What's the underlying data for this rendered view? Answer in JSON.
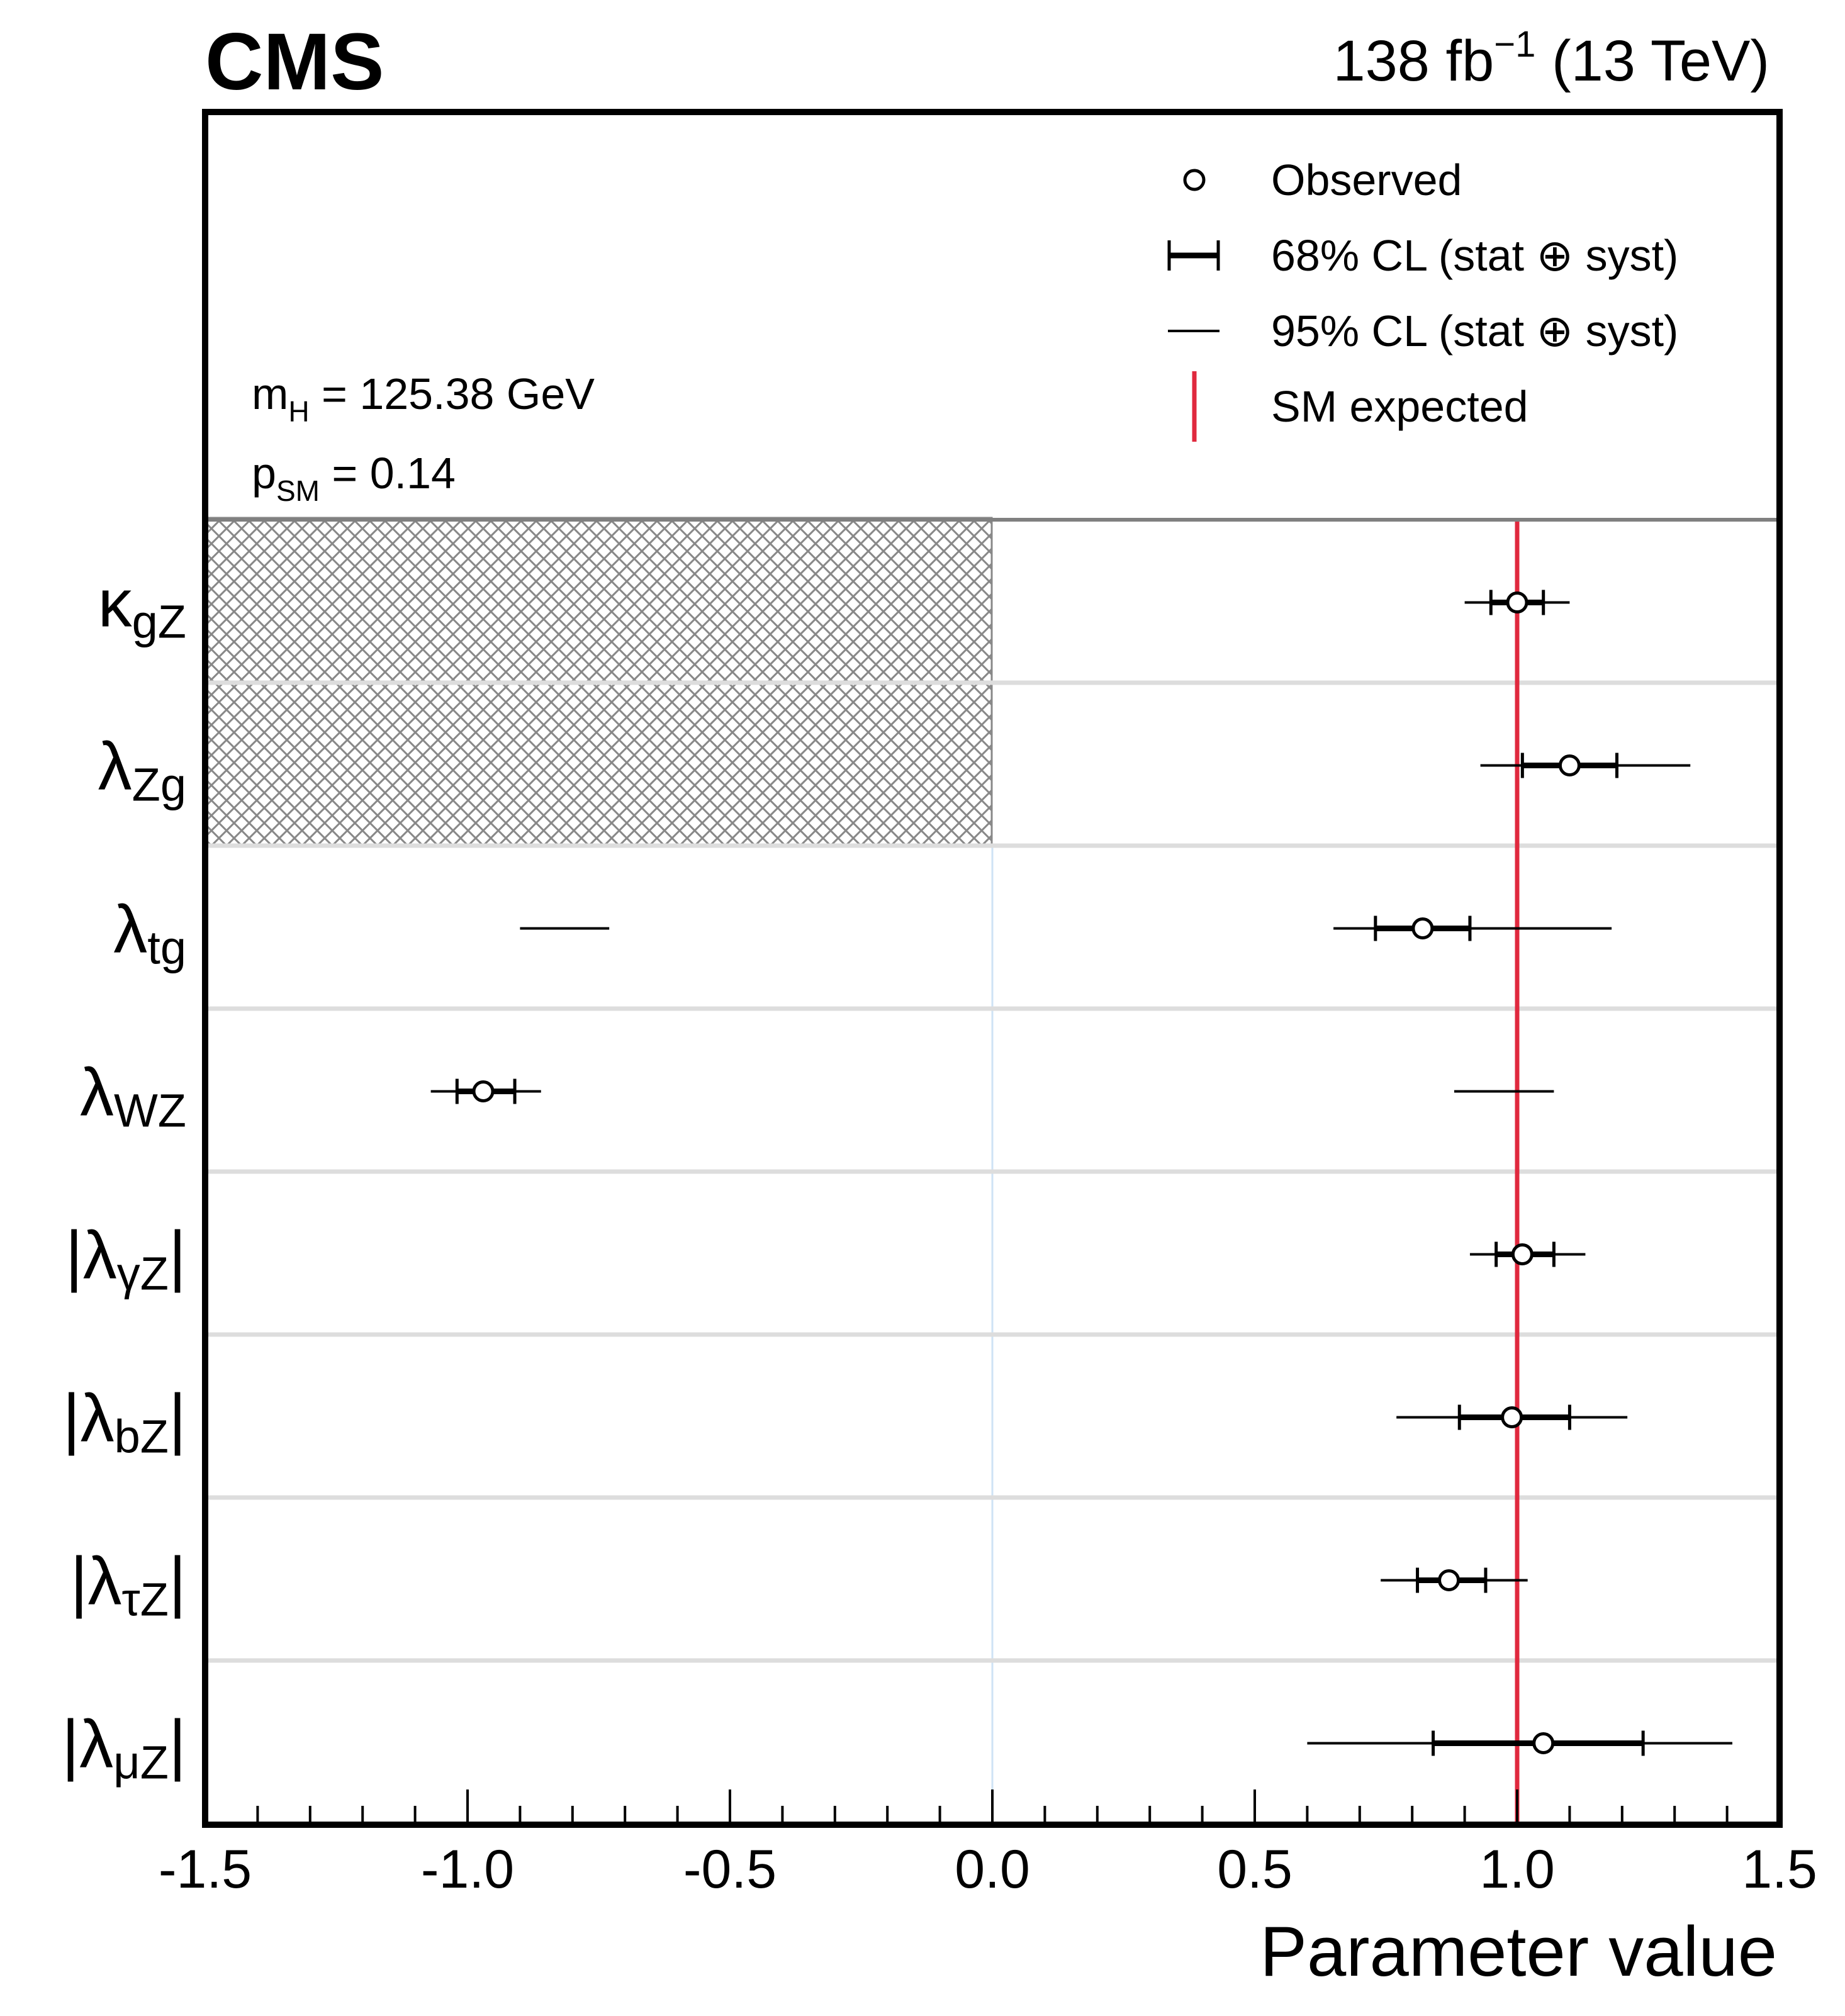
{
  "header": {
    "experiment": "CMS",
    "luminosity_value": "138 fb",
    "luminosity_exponent": "−1",
    "energy": "(13 TeV)"
  },
  "info": {
    "mass_label": "m",
    "mass_sub": "H",
    "mass_value": " = 125.38 GeV",
    "psm_label": "p",
    "psm_sub": "SM",
    "psm_value": " = 0.14"
  },
  "legend": {
    "observed": "Observed",
    "cl68": "68% CL (stat ⊕ syst)",
    "cl95": "95% CL (stat ⊕ syst)",
    "sm": "SM expected"
  },
  "colors": {
    "sm_line": "#e0293e",
    "frame": "#000000",
    "separator": "#dddddd",
    "hatch": "#888888",
    "zero_line": "#cfe3f5"
  },
  "chart_data": {
    "type": "forest",
    "xlabel": "Parameter value",
    "xlim": [
      -1.5,
      1.5
    ],
    "xticks": [
      "-1.5",
      "-1.0",
      "-0.5",
      "0.0",
      "0.5",
      "1.0",
      "1.5"
    ],
    "sm_expected": 1.0,
    "excluded_region": {
      "x": [
        -1.5,
        0.0
      ],
      "rows": [
        "kappa_gZ",
        "lambda_Zg"
      ]
    },
    "parameters": [
      {
        "id": "kappa_gZ",
        "base": "κ",
        "sub": "gZ",
        "abs": false,
        "observed": 1.0,
        "cl68": [
          [
            0.95,
            1.05
          ]
        ],
        "cl95": [
          [
            0.9,
            1.1
          ]
        ]
      },
      {
        "id": "lambda_Zg",
        "base": "λ",
        "sub": "Zg",
        "abs": false,
        "observed": 1.1,
        "cl68": [
          [
            1.01,
            1.19
          ]
        ],
        "cl95": [
          [
            0.93,
            1.33
          ]
        ]
      },
      {
        "id": "lambda_tg",
        "base": "λ",
        "sub": "tg",
        "abs": false,
        "observed": 0.82,
        "cl68": [
          [
            0.73,
            0.91
          ]
        ],
        "cl95": [
          [
            -0.9,
            -0.73
          ],
          [
            0.65,
            1.18
          ]
        ]
      },
      {
        "id": "lambda_WZ",
        "base": "λ",
        "sub": "WZ",
        "abs": false,
        "observed": -0.97,
        "cl68": [
          [
            -1.02,
            -0.91
          ]
        ],
        "cl95": [
          [
            -1.07,
            -0.86
          ],
          [
            0.88,
            1.07
          ]
        ]
      },
      {
        "id": "lambda_gammaZ",
        "base": "λ",
        "sub": "γZ",
        "abs": true,
        "observed": 1.01,
        "cl68": [
          [
            0.96,
            1.07
          ]
        ],
        "cl95": [
          [
            0.91,
            1.13
          ]
        ]
      },
      {
        "id": "lambda_bZ",
        "base": "λ",
        "sub": "bZ",
        "abs": true,
        "observed": 0.99,
        "cl68": [
          [
            0.89,
            1.1
          ]
        ],
        "cl95": [
          [
            0.77,
            1.21
          ]
        ]
      },
      {
        "id": "lambda_tauZ",
        "base": "λ",
        "sub": "τZ",
        "abs": true,
        "observed": 0.87,
        "cl68": [
          [
            0.81,
            0.94
          ]
        ],
        "cl95": [
          [
            0.74,
            1.02
          ]
        ]
      },
      {
        "id": "lambda_muZ",
        "base": "λ",
        "sub": "μZ",
        "abs": true,
        "observed": 1.05,
        "cl68": [
          [
            0.84,
            1.24
          ]
        ],
        "cl95": [
          [
            0.6,
            1.41
          ]
        ]
      }
    ]
  }
}
